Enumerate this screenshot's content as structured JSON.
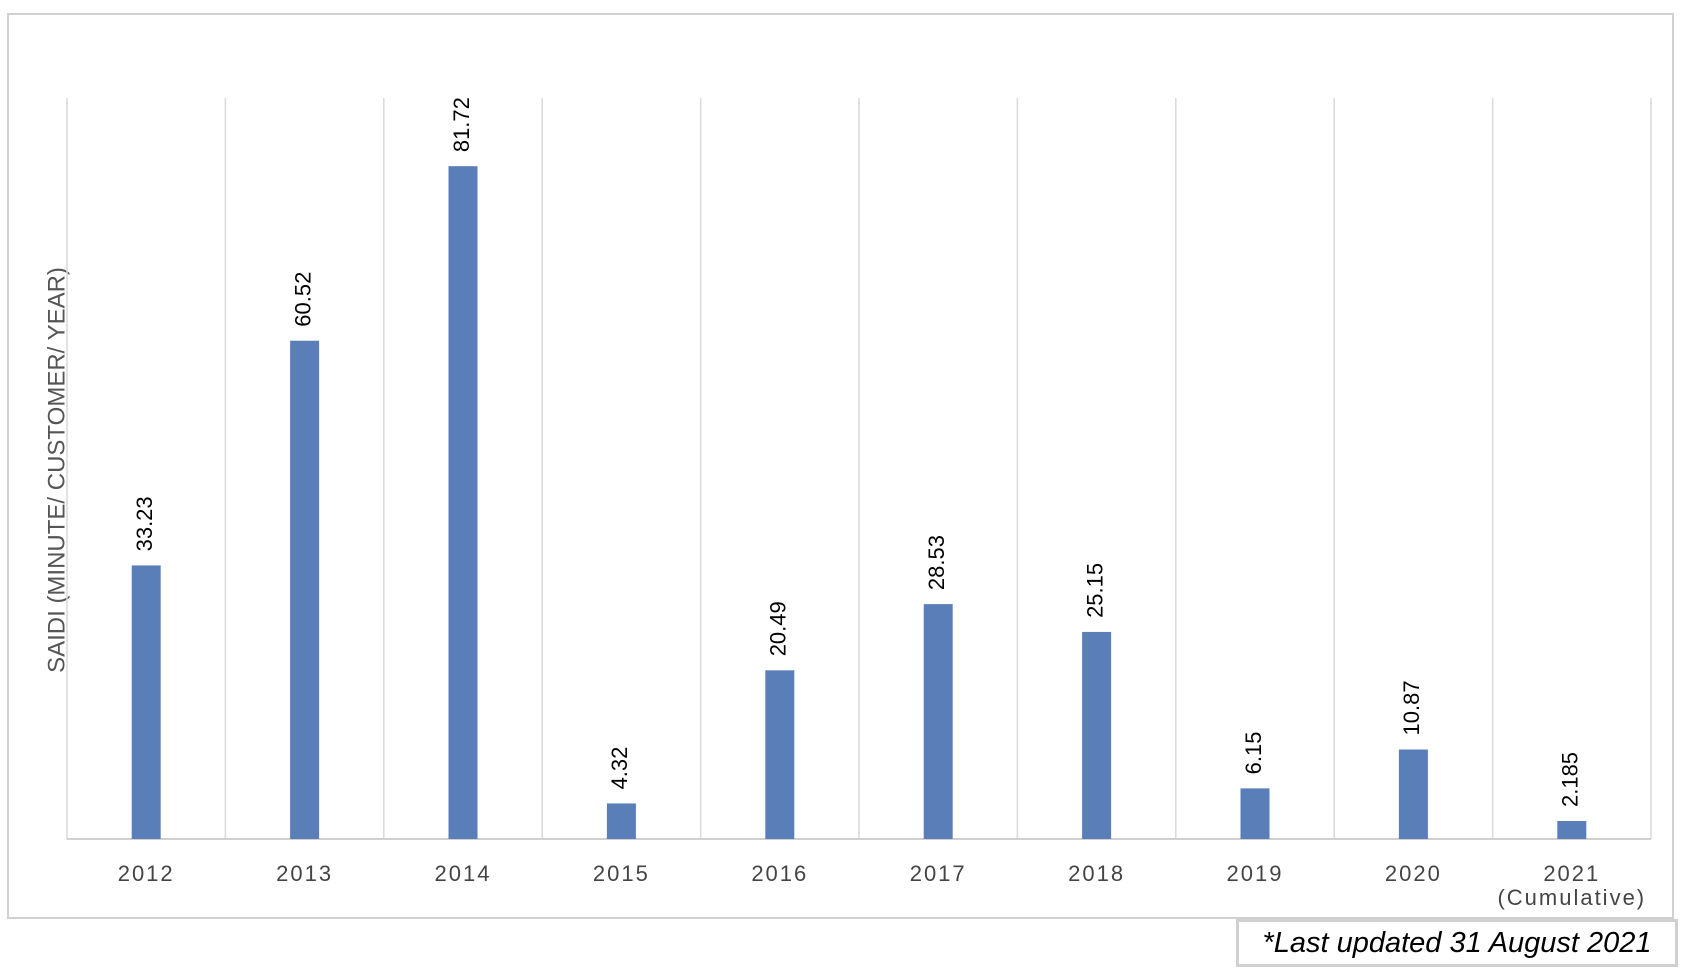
{
  "chart_data": {
    "type": "bar",
    "y_axis_label": "SAIDI (MINUTE/ CUSTOMER/ YEAR)",
    "categories": [
      "2012",
      "2013",
      "2014",
      "2015",
      "2016",
      "2017",
      "2018",
      "2019",
      "2020",
      "2021\n(Cumulative)"
    ],
    "values": [
      33.23,
      60.52,
      81.72,
      4.32,
      20.49,
      28.53,
      25.15,
      6.15,
      10.87,
      2.185
    ],
    "color": "#5a7fb8",
    "ylim": [
      0,
      90
    ],
    "grid": "vertical",
    "footnote": "*Last updated 31 August 2021"
  }
}
